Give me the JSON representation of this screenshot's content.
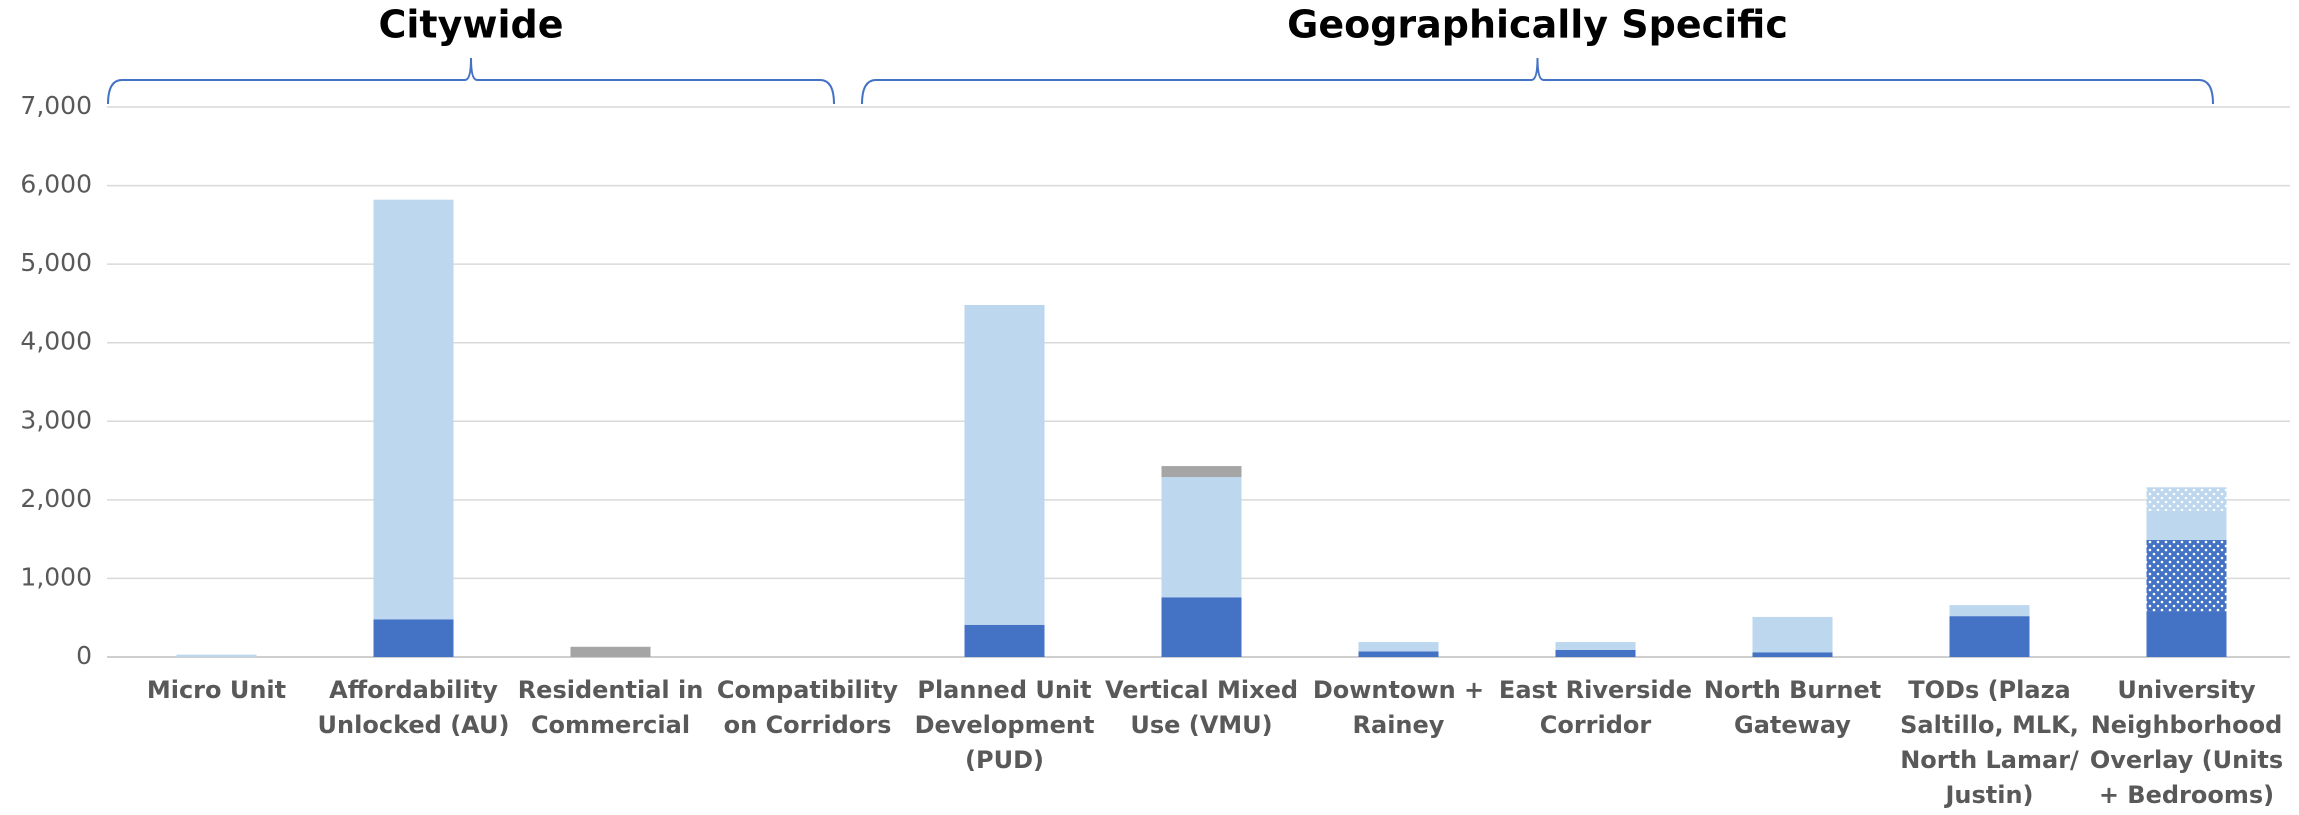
{
  "chart_data": {
    "type": "stacked-bar",
    "categories": [
      "Micro Unit",
      "Affordability\nUnlocked (AU)",
      "Residential in\nCommercial",
      "Compatibility\non Corridors",
      "Planned Unit\nDevelopment\n(PUD)",
      "Vertical Mixed\nUse (VMU)",
      "Downtown +\nRainey",
      "East Riverside\nCorridor",
      "North Burnet\nGateway",
      "TODs (Plaza\nSaltillo, MLK,\nNorth Lamar/\nJustin)",
      "University\nNeighborhood\nOverlay (Units\n+ Bedrooms)"
    ],
    "series": [
      {
        "color": "#4472c4",
        "values": [
          0,
          480,
          0,
          0,
          410,
          760,
          70,
          90,
          60,
          520,
          580
        ]
      },
      {
        "color": "#4472c4",
        "pattern": "dots",
        "values": [
          0,
          0,
          0,
          0,
          0,
          0,
          0,
          0,
          0,
          0,
          910
        ]
      },
      {
        "color": "#bdd7ee",
        "values": [
          30,
          5340,
          0,
          0,
          4070,
          1530,
          120,
          100,
          450,
          140,
          370
        ]
      },
      {
        "color": "#bdd7ee",
        "pattern": "dots",
        "values": [
          0,
          0,
          0,
          0,
          0,
          0,
          0,
          0,
          0,
          0,
          300
        ]
      },
      {
        "color": "#a5a5a5",
        "values": [
          0,
          0,
          130,
          0,
          0,
          140,
          0,
          0,
          0,
          0,
          0
        ]
      }
    ],
    "groups": [
      {
        "label": "Citywide",
        "count": 4
      },
      {
        "label": "Geographically Specific",
        "count": 7
      }
    ],
    "ylim": [
      0,
      7000
    ],
    "yticks": [
      0,
      {
        "value": 1000,
        "label": "1,000"
      },
      {
        "value": 2000,
        "label": "2,000"
      },
      {
        "value": 3000,
        "label": "3,000"
      },
      {
        "value": 4000,
        "label": "4,000"
      },
      {
        "value": 5000,
        "label": "5,000"
      },
      {
        "value": 6000,
        "label": "6,000"
      },
      {
        "value": 7000,
        "label": "7,000"
      }
    ],
    "grid": true
  }
}
